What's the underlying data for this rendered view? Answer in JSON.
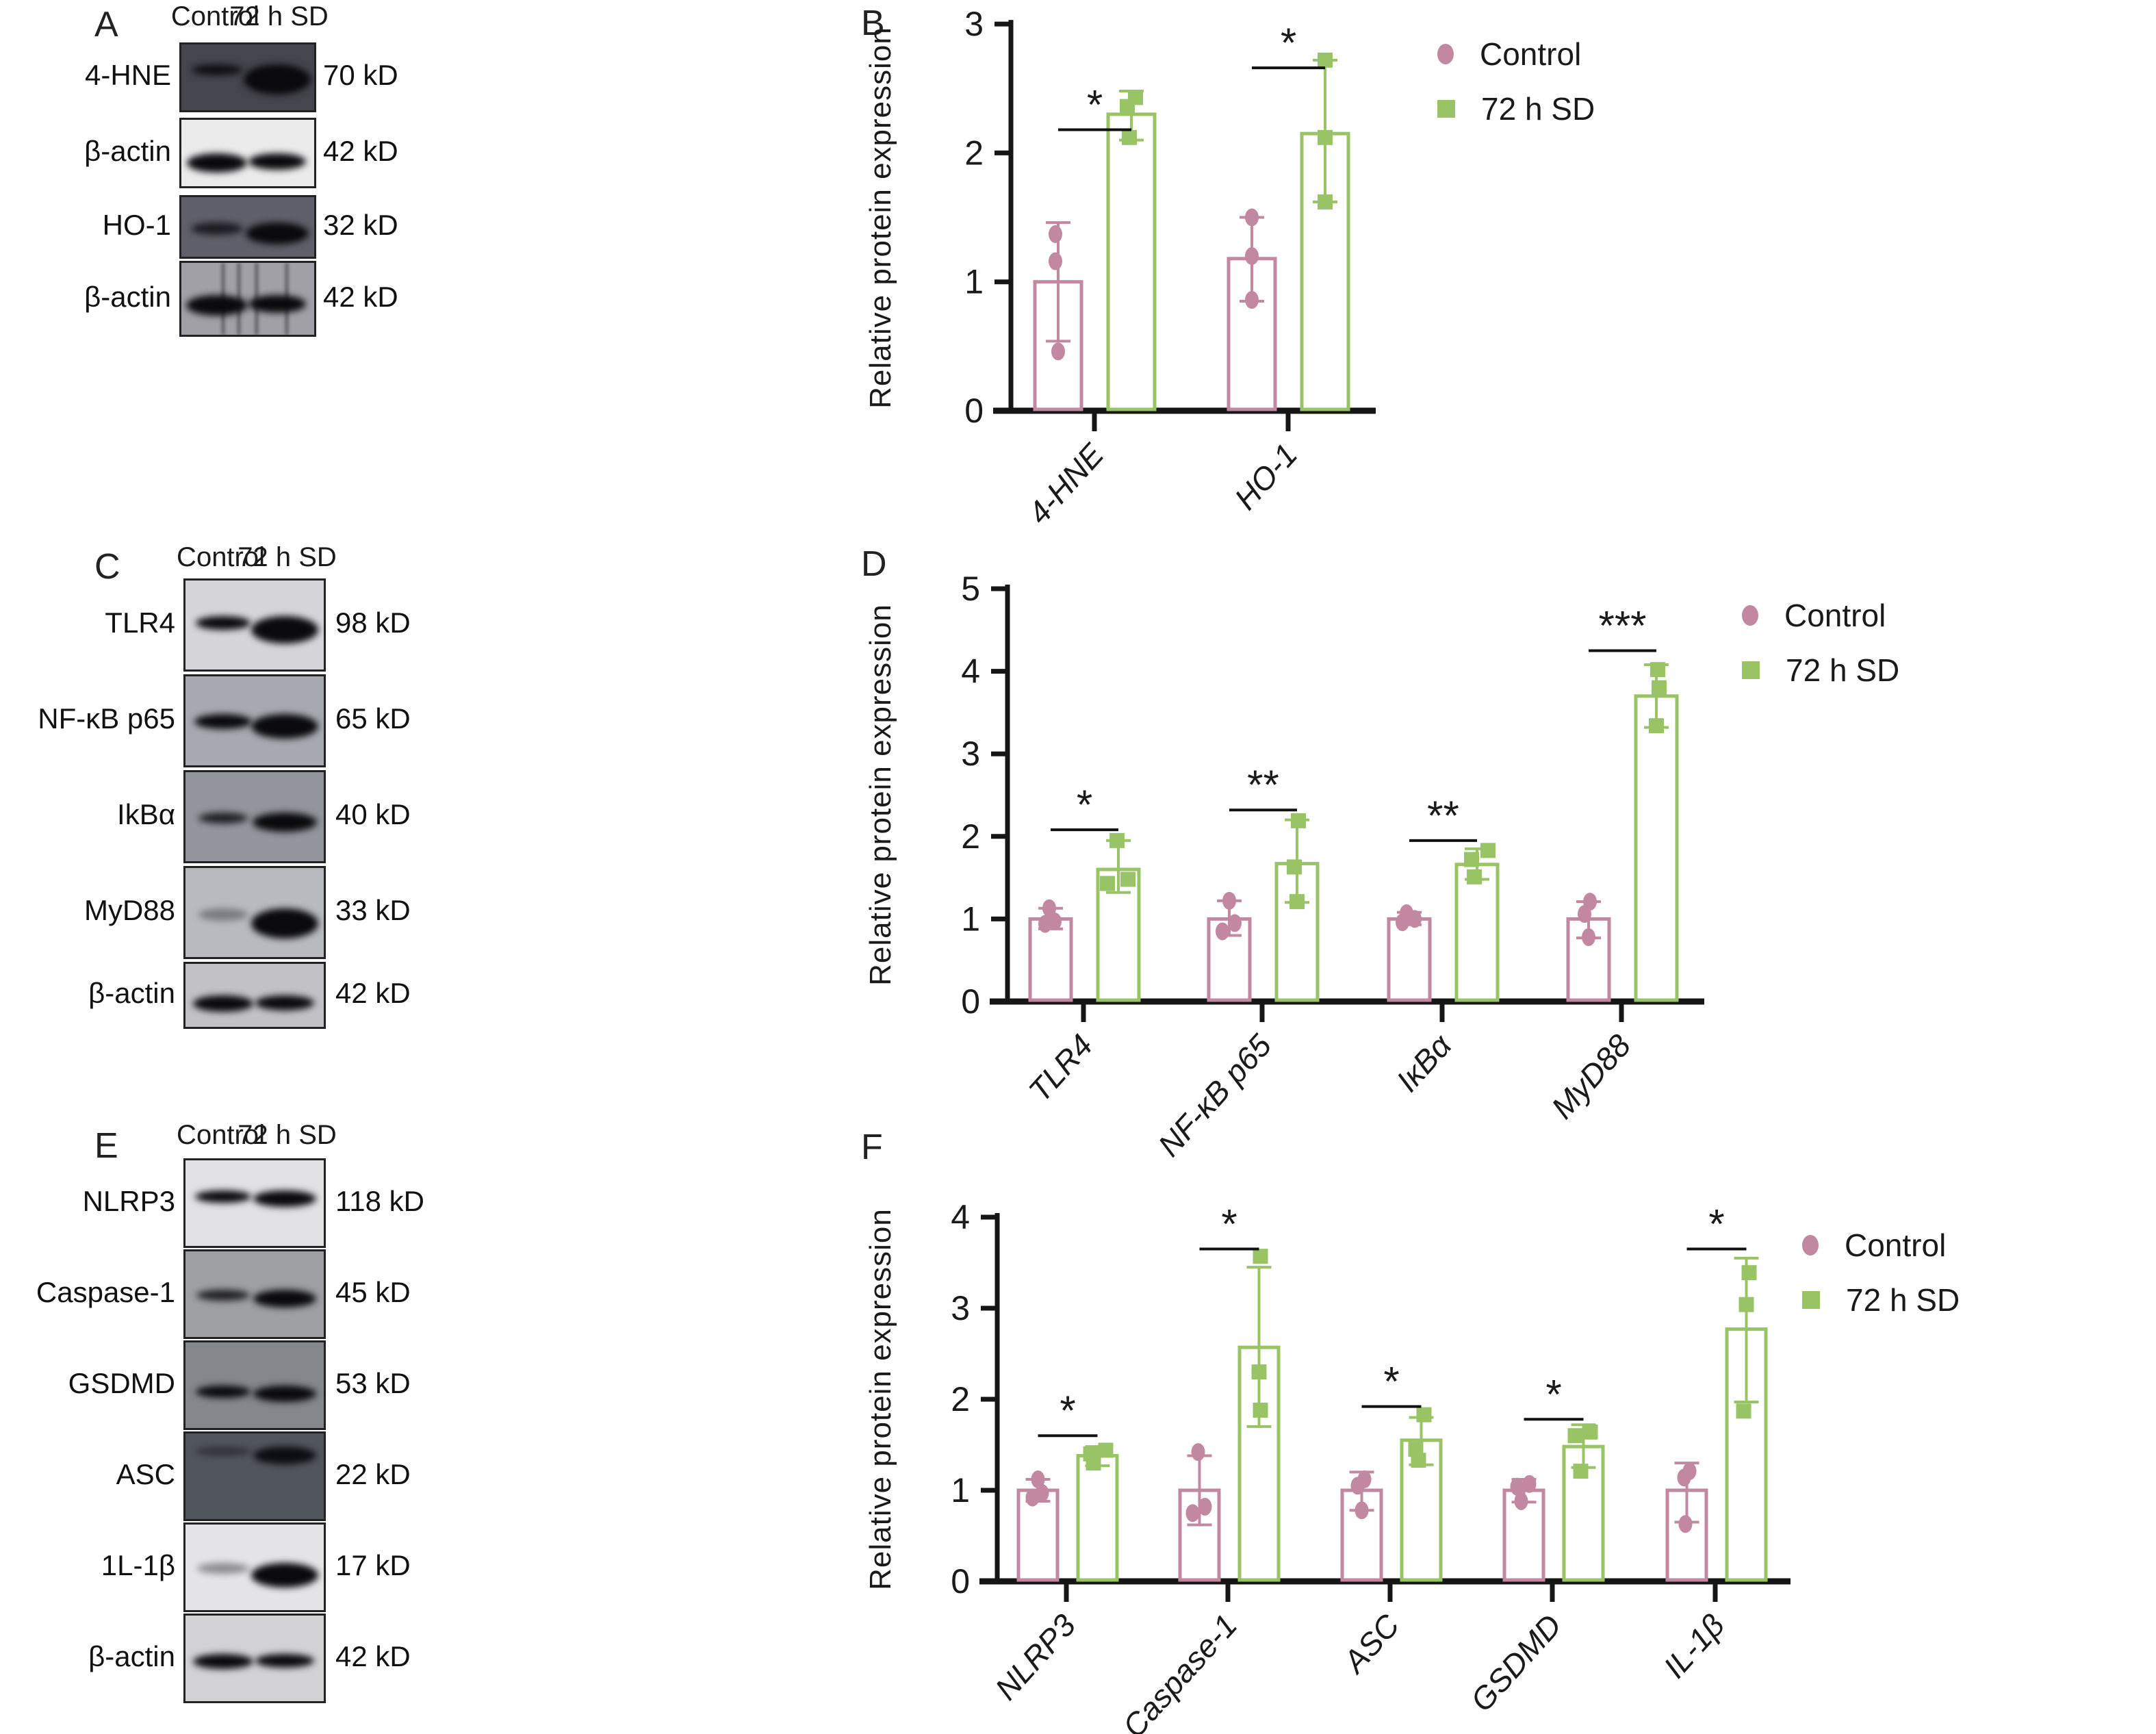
{
  "legend": {
    "control": "Control",
    "sd": "72 h SD"
  },
  "colors": {
    "pink": "#C287A1",
    "green": "#98C465",
    "axis": "#161616",
    "text": "#1a1a1a"
  },
  "blots": {
    "A": {
      "letter": "A",
      "columns": [
        "Control",
        "72 h SD"
      ],
      "rows": [
        {
          "protein": "4-HNE",
          "kd": "70 kD",
          "bg": "#45454d",
          "bandY": 0.3,
          "control": {
            "w": 74,
            "h": 16,
            "a": 0.92
          },
          "sd": {
            "w": 98,
            "h": 44,
            "a": 1
          }
        },
        {
          "protein": "β-actin",
          "kd": "42 kD",
          "bg": "#ebebeb",
          "bandY": 0.5,
          "control": {
            "w": 88,
            "h": 28,
            "a": 1
          },
          "sd": {
            "w": 84,
            "h": 24,
            "a": 1
          }
        },
        {
          "protein": "HO-1",
          "kd": "32 kD",
          "bg": "#60606a",
          "bandY": 0.42,
          "control": {
            "w": 76,
            "h": 18,
            "a": 0.8
          },
          "sd": {
            "w": 92,
            "h": 32,
            "a": 1
          }
        },
        {
          "protein": "β-actin",
          "kd": "42 kD",
          "bg": "#a0a0a6",
          "bandY": 0.45,
          "control": {
            "w": 90,
            "h": 30,
            "a": 1
          },
          "sd": {
            "w": 84,
            "h": 26,
            "a": 1
          },
          "streaks": true
        }
      ]
    },
    "C": {
      "letter": "C",
      "columns": [
        "Control",
        "72 h SD"
      ],
      "rows": [
        {
          "protein": "TLR4",
          "kd": "98 kD",
          "bg": "#d5d5d9",
          "bandY": 0.4,
          "control": {
            "w": 80,
            "h": 20,
            "a": 1
          },
          "sd": {
            "w": 98,
            "h": 40,
            "a": 1
          }
        },
        {
          "protein": "NF-κB p65",
          "kd": "65 kD",
          "bg": "#a6aab0",
          "bandY": 0.42,
          "control": {
            "w": 84,
            "h": 22,
            "a": 1
          },
          "sd": {
            "w": 98,
            "h": 36,
            "a": 1
          }
        },
        {
          "protein": "IkBα",
          "kd": "40 kD",
          "bg": "#92959b",
          "bandY": 0.45,
          "control": {
            "w": 72,
            "h": 16,
            "a": 0.85
          },
          "sd": {
            "w": 94,
            "h": 28,
            "a": 1
          }
        },
        {
          "protein": "MyD88",
          "kd": "33 kD",
          "bg": "#b7babf",
          "bandY": 0.45,
          "control": {
            "w": 72,
            "h": 18,
            "a": 0.35
          },
          "sd": {
            "w": 98,
            "h": 44,
            "a": 1
          }
        },
        {
          "protein": "β-actin",
          "kd": "42 kD",
          "bg": "#c2c2c6",
          "bandY": 0.5,
          "control": {
            "w": 88,
            "h": 24,
            "a": 1
          },
          "sd": {
            "w": 86,
            "h": 22,
            "a": 1
          }
        }
      ]
    },
    "E": {
      "letter": "E",
      "columns": [
        "Control",
        "72 h SD"
      ],
      "rows": [
        {
          "protein": "NLRP3",
          "kd": "118 kD",
          "bg": "#e1e1e3",
          "bandY": 0.35,
          "control": {
            "w": 82,
            "h": 18,
            "a": 1
          },
          "sd": {
            "w": 92,
            "h": 24,
            "a": 1
          }
        },
        {
          "protein": "Caspase-1",
          "kd": "45 kD",
          "bg": "#9e9fa3",
          "bandY": 0.45,
          "control": {
            "w": 78,
            "h": 16,
            "a": 0.85
          },
          "sd": {
            "w": 92,
            "h": 26,
            "a": 1
          }
        },
        {
          "protein": "GSDMD",
          "kd": "53 kD",
          "bg": "#84878c",
          "bandY": 0.5,
          "control": {
            "w": 80,
            "h": 18,
            "a": 1
          },
          "sd": {
            "w": 92,
            "h": 24,
            "a": 1
          }
        },
        {
          "protein": "ASC",
          "kd": "22 kD",
          "bg": "#51565d",
          "bandY": 0.15,
          "control": {
            "w": 82,
            "h": 14,
            "a": 0.45
          },
          "sd": {
            "w": 92,
            "h": 26,
            "a": 0.95
          }
        },
        {
          "protein": "1L-1β",
          "kd": "17 kD",
          "bg": "#e4e4e6",
          "bandY": 0.45,
          "control": {
            "w": 76,
            "h": 16,
            "a": 0.4
          },
          "sd": {
            "w": 98,
            "h": 36,
            "a": 1
          }
        },
        {
          "protein": "β-actin",
          "kd": "42 kD",
          "bg": "#d2d2d4",
          "bandY": 0.45,
          "control": {
            "w": 88,
            "h": 22,
            "a": 1
          },
          "sd": {
            "w": 86,
            "h": 20,
            "a": 1
          }
        }
      ]
    }
  },
  "chart_data": [
    {
      "panel": "B",
      "letter": "B",
      "type": "bar",
      "title": "",
      "xlabel": "",
      "ylabel": "Relative protein expression",
      "ylim": [
        0,
        3
      ],
      "yticks": [
        0,
        1,
        2,
        3
      ],
      "grid": false,
      "legend_position": "top-right",
      "categories": [
        "4-HNE",
        "HO-1"
      ],
      "series": [
        {
          "name": "Control",
          "values": [
            1.0,
            1.18
          ],
          "whiskers": [
            [
              0.54,
              1.46
            ],
            [
              0.85,
              1.5
            ]
          ],
          "points": [
            [
              [
                0.46,
                0
              ],
              [
                1.16,
                -4
              ],
              [
                1.37,
                -4
              ]
            ],
            [
              [
                0.86,
                0
              ],
              [
                1.2,
                0
              ],
              [
                1.5,
                0
              ]
            ]
          ]
        },
        {
          "name": "72 h SD",
          "values": [
            2.3,
            2.15
          ],
          "whiskers": [
            [
              2.1,
              2.48
            ],
            [
              1.62,
              2.72
            ]
          ],
          "points": [
            [
              [
                2.12,
                -3
              ],
              [
                2.36,
                -6
              ],
              [
                2.43,
                6
              ]
            ],
            [
              [
                1.62,
                0
              ],
              [
                2.12,
                0
              ],
              [
                2.72,
                0
              ]
            ]
          ]
        }
      ],
      "significance": [
        {
          "label": "*",
          "y": 2.18
        },
        {
          "label": "*",
          "y": 2.66
        }
      ]
    },
    {
      "panel": "D",
      "letter": "D",
      "type": "bar",
      "title": "",
      "xlabel": "",
      "ylabel": "Relative protein expression",
      "ylim": [
        0,
        5
      ],
      "yticks": [
        0,
        1,
        2,
        3,
        4,
        5
      ],
      "grid": false,
      "legend_position": "top-right",
      "categories": [
        "TLR4",
        "NF-κB p65",
        "IκBα",
        "MyD88"
      ],
      "series": [
        {
          "name": "Control",
          "values": [
            1.0,
            1.0,
            1.0,
            1.0
          ],
          "whiskers": [
            [
              0.88,
              1.13
            ],
            [
              0.8,
              1.22
            ],
            [
              0.93,
              1.08
            ],
            [
              0.77,
              1.21
            ]
          ],
          "points": [
            [
              [
                0.94,
                -8
              ],
              [
                0.97,
                6
              ],
              [
                1.13,
                -2
              ]
            ],
            [
              [
                0.85,
                -10
              ],
              [
                0.95,
                8
              ],
              [
                1.22,
                0
              ]
            ],
            [
              [
                0.96,
                -10
              ],
              [
                1.0,
                8
              ],
              [
                1.07,
                -4
              ]
            ],
            [
              [
                0.78,
                0
              ],
              [
                1.06,
                -6
              ],
              [
                1.21,
                2
              ]
            ]
          ]
        },
        {
          "name": "72 h SD",
          "values": [
            1.6,
            1.67,
            1.66,
            3.7
          ],
          "whiskers": [
            [
              1.32,
              1.95
            ],
            [
              1.2,
              2.2
            ],
            [
              1.48,
              1.85
            ],
            [
              3.32,
              4.08
            ]
          ],
          "points": [
            [
              [
                1.43,
                -16
              ],
              [
                1.48,
                14
              ],
              [
                1.95,
                -2
              ]
            ],
            [
              [
                1.21,
                0
              ],
              [
                1.63,
                -4
              ],
              [
                2.19,
                2
              ]
            ],
            [
              [
                1.51,
                -4
              ],
              [
                1.72,
                -8
              ],
              [
                1.83,
                16
              ]
            ],
            [
              [
                3.34,
                0
              ],
              [
                3.8,
                4
              ],
              [
                4.02,
                2
              ]
            ]
          ]
        }
      ],
      "significance": [
        {
          "label": "*",
          "y": 2.08
        },
        {
          "label": "**",
          "y": 2.32
        },
        {
          "label": "**",
          "y": 1.95
        },
        {
          "label": "***",
          "y": 4.25
        }
      ]
    },
    {
      "panel": "F",
      "letter": "F",
      "type": "bar",
      "title": "",
      "xlabel": "",
      "ylabel": "Relative protein expression",
      "ylim": [
        0,
        4
      ],
      "yticks": [
        0,
        1,
        2,
        3,
        4
      ],
      "grid": false,
      "legend_position": "top-right",
      "categories": [
        "NLRP3",
        "Caspase-1",
        "ASC",
        "GSDMD",
        "IL-1β"
      ],
      "series": [
        {
          "name": "Control",
          "values": [
            1.0,
            1.0,
            1.0,
            1.0,
            1.0
          ],
          "whiskers": [
            [
              0.88,
              1.12
            ],
            [
              0.62,
              1.38
            ],
            [
              0.78,
              1.2
            ],
            [
              0.87,
              1.12
            ],
            [
              0.65,
              1.3
            ]
          ],
          "points": [
            [
              [
                0.92,
                -8
              ],
              [
                0.97,
                6
              ],
              [
                1.12,
                0
              ]
            ],
            [
              [
                0.75,
                -10
              ],
              [
                0.82,
                8
              ],
              [
                1.42,
                -2
              ]
            ],
            [
              [
                0.78,
                0
              ],
              [
                1.05,
                -6
              ],
              [
                1.12,
                4
              ]
            ],
            [
              [
                0.88,
                -4
              ],
              [
                1.04,
                -10
              ],
              [
                1.07,
                8
              ]
            ],
            [
              [
                0.63,
                -2
              ],
              [
                1.14,
                -4
              ],
              [
                1.21,
                4
              ]
            ]
          ]
        },
        {
          "name": "72 h SD",
          "values": [
            1.38,
            2.57,
            1.55,
            1.48,
            2.77
          ],
          "whiskers": [
            [
              1.27,
              1.48
            ],
            [
              1.7,
              3.45
            ],
            [
              1.28,
              1.8
            ],
            [
              1.25,
              1.72
            ],
            [
              1.97,
              3.55
            ]
          ],
          "points": [
            [
              [
                1.3,
                -6
              ],
              [
                1.4,
                -10
              ],
              [
                1.44,
                12
              ]
            ],
            [
              [
                1.88,
                2
              ],
              [
                2.3,
                0
              ],
              [
                3.57,
                2
              ]
            ],
            [
              [
                1.33,
                -4
              ],
              [
                1.45,
                -8
              ],
              [
                1.83,
                4
              ]
            ],
            [
              [
                1.21,
                -4
              ],
              [
                1.6,
                -12
              ],
              [
                1.64,
                10
              ]
            ],
            [
              [
                1.87,
                -4
              ],
              [
                3.04,
                0
              ],
              [
                3.39,
                4
              ]
            ]
          ]
        }
      ],
      "significance": [
        {
          "label": "*",
          "y": 1.6
        },
        {
          "label": "*",
          "y": 3.65
        },
        {
          "label": "*",
          "y": 1.92
        },
        {
          "label": "*",
          "y": 1.78
        },
        {
          "label": "*",
          "y": 3.65
        }
      ]
    }
  ]
}
